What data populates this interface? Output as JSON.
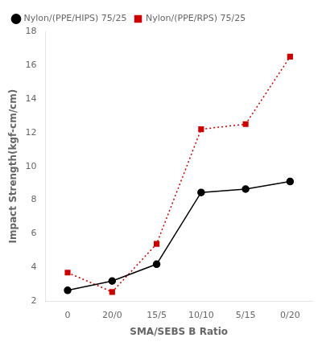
{
  "chart_data": {
    "type": "line",
    "categories": [
      "0",
      "20/0",
      "15/5",
      "10/10",
      "5/15",
      "0/20"
    ],
    "series": [
      {
        "name": "Nylon/(PPE/HIPS) 75/25",
        "color": "#000000",
        "values": [
          2.65,
          3.2,
          4.2,
          8.45,
          8.65,
          9.1
        ],
        "marker": "circle",
        "line_style": "solid"
      },
      {
        "name": "Nylon/(PPE/RPS) 75/25",
        "color": "#cc0000",
        "values": [
          3.7,
          2.55,
          5.4,
          12.2,
          12.5,
          16.5
        ],
        "marker": "square",
        "line_style": "dotted"
      }
    ],
    "xlabel": "SMA/SEBS B Ratio",
    "ylabel": "Impact Strength(kgf-cm/cm)",
    "ylim": [
      2,
      18
    ],
    "yticks": [
      2,
      4,
      6,
      8,
      10,
      12,
      14,
      16,
      18
    ],
    "grid": false,
    "legend": "upper left"
  }
}
